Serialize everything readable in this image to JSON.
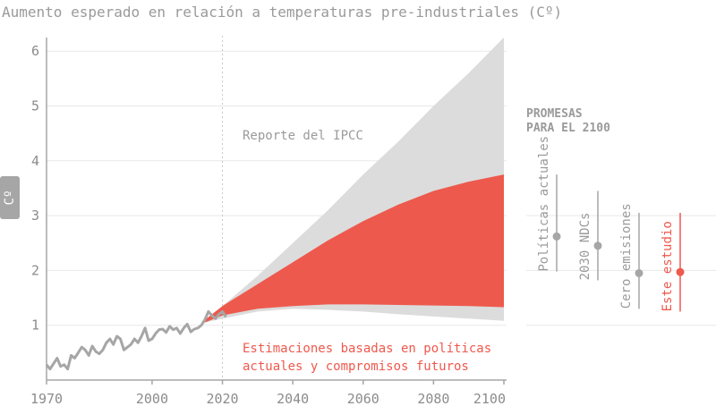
{
  "chart_data": {
    "type": "area",
    "title": "Aumento esperado en relación a temperaturas pre-industriales (Cº)",
    "ylabel": "Cº",
    "xlim": [
      1970,
      2100
    ],
    "ylim": [
      0,
      6.3
    ],
    "x_ticks": [
      "1970",
      "2000",
      "2020",
      "2040",
      "2060",
      "2080",
      "2100"
    ],
    "y_ticks": [
      "1",
      "2",
      "3",
      "4",
      "5",
      "6"
    ],
    "marker_year": 2020,
    "historical": {
      "x": [
        1970,
        1971,
        1972,
        1973,
        1974,
        1975,
        1976,
        1977,
        1978,
        1979,
        1980,
        1981,
        1982,
        1983,
        1984,
        1985,
        1986,
        1987,
        1988,
        1989,
        1990,
        1991,
        1992,
        1993,
        1994,
        1995,
        1996,
        1997,
        1998,
        1999,
        2000,
        2001,
        2002,
        2003,
        2004,
        2005,
        2006,
        2007,
        2008,
        2009,
        2010,
        2011,
        2012,
        2013,
        2014,
        2015,
        2016,
        2017,
        2018,
        2019,
        2020,
        2021
      ],
      "y": [
        0.28,
        0.2,
        0.3,
        0.4,
        0.25,
        0.28,
        0.2,
        0.45,
        0.4,
        0.5,
        0.6,
        0.55,
        0.45,
        0.62,
        0.52,
        0.48,
        0.55,
        0.68,
        0.75,
        0.65,
        0.8,
        0.75,
        0.55,
        0.6,
        0.65,
        0.75,
        0.68,
        0.8,
        0.95,
        0.72,
        0.75,
        0.85,
        0.92,
        0.93,
        0.87,
        0.98,
        0.92,
        0.95,
        0.85,
        0.95,
        1.02,
        0.88,
        0.93,
        0.95,
        1.0,
        1.1,
        1.25,
        1.18,
        1.12,
        1.2,
        1.25,
        1.15
      ]
    },
    "series": [
      {
        "name": "Reporte del IPCC",
        "color": "#dcdcdc",
        "x": [
          2015,
          2020,
          2030,
          2040,
          2050,
          2060,
          2070,
          2080,
          2090,
          2100
        ],
        "upper": [
          1.05,
          1.35,
          1.9,
          2.5,
          3.1,
          3.75,
          4.35,
          5.0,
          5.6,
          6.25
        ],
        "lower": [
          1.05,
          1.12,
          1.25,
          1.3,
          1.28,
          1.25,
          1.2,
          1.16,
          1.12,
          1.08
        ]
      },
      {
        "name": "Estimaciones basadas en políticas actuales y compromisos futuros",
        "color": "#ee594d",
        "x": [
          2015,
          2020,
          2030,
          2040,
          2050,
          2060,
          2070,
          2080,
          2090,
          2100
        ],
        "upper": [
          1.1,
          1.35,
          1.75,
          2.15,
          2.55,
          2.9,
          3.2,
          3.45,
          3.62,
          3.75
        ],
        "lower": [
          1.05,
          1.18,
          1.3,
          1.35,
          1.38,
          1.38,
          1.37,
          1.36,
          1.35,
          1.33
        ]
      }
    ],
    "annotations": {
      "ipcc": "Reporte del IPCC",
      "estimate_line1": "Estimaciones basadas en políticas",
      "estimate_line2": "actuales y compromisos futuros"
    },
    "promesas": {
      "title_line1": "PROMESAS",
      "title_line2": "PARA EL 2100",
      "items": [
        {
          "label": "Políticas actuales",
          "value": 2.62,
          "low": 1.98,
          "high": 3.75,
          "color": "#a6a6a6"
        },
        {
          "label": "2030 NDCs",
          "value": 2.45,
          "low": 1.82,
          "high": 3.45,
          "color": "#a6a6a6"
        },
        {
          "label": "Cero emisiones",
          "value": 1.95,
          "low": 1.3,
          "high": 3.05,
          "color": "#a6a6a6"
        },
        {
          "label": "Este estudio",
          "value": 1.97,
          "low": 1.25,
          "high": 3.05,
          "color": "#ee594d"
        }
      ]
    },
    "colors": {
      "axis": "#a6a6a6",
      "text": "#8c8c8c",
      "grid": "#e8e8e8",
      "red": "#ee594d",
      "grey_band": "#dcdcdc",
      "historical": "#a6a6a6"
    }
  }
}
